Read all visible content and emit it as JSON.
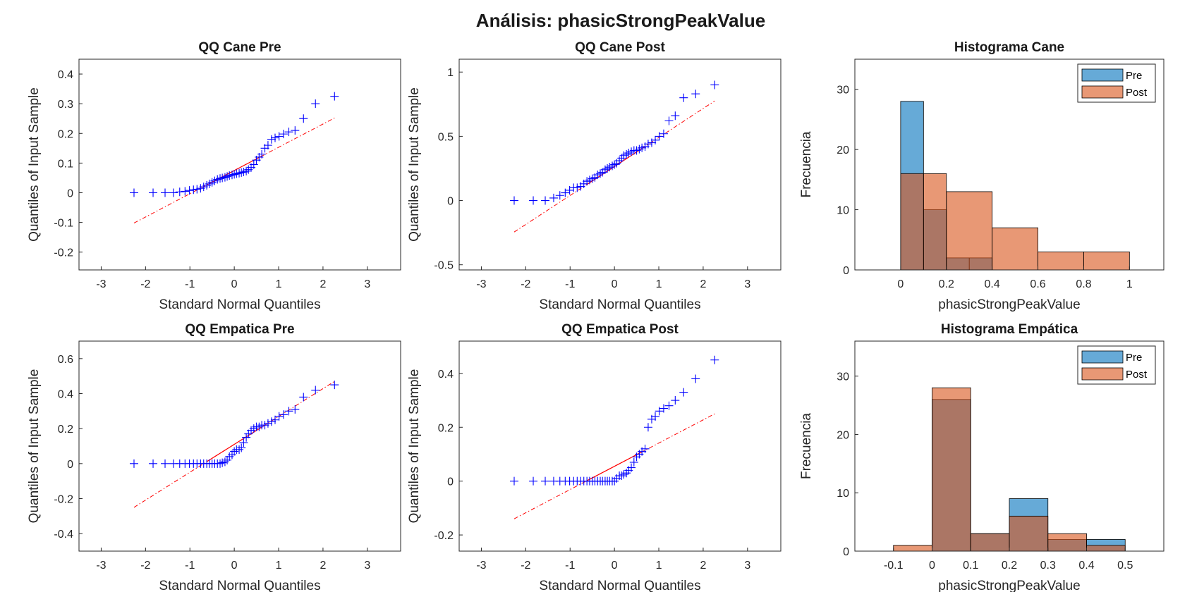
{
  "figure": {
    "title": "Análisis: phasicStrongPeakValue"
  },
  "chart_data": [
    {
      "type": "scatter",
      "title": "QQ Cane Pre",
      "xlabel": "Standard Normal Quantiles",
      "ylabel": "Quantiles of Input Sample",
      "xlim": [
        -3.5,
        3.75
      ],
      "ylim": [
        -0.26,
        0.45
      ],
      "xticks": [
        -3,
        -2,
        -1,
        0,
        1,
        2,
        3
      ],
      "yticks": [
        -0.2,
        -0.1,
        0,
        0.1,
        0.2,
        0.3,
        0.4
      ],
      "ytick_labels": [
        "-0.2",
        "-0.1",
        "0",
        "0.1",
        "0.2",
        "0.3",
        "0.4"
      ],
      "points_x": [
        -2.26,
        -1.83,
        -1.56,
        -1.37,
        -1.23,
        -1.11,
        -1.01,
        -0.92,
        -0.84,
        -0.76,
        -0.69,
        -0.62,
        -0.56,
        -0.5,
        -0.44,
        -0.38,
        -0.32,
        -0.27,
        -0.21,
        -0.16,
        -0.11,
        -0.05,
        0.0,
        0.05,
        0.11,
        0.16,
        0.21,
        0.27,
        0.32,
        0.38,
        0.44,
        0.5,
        0.56,
        0.62,
        0.69,
        0.76,
        0.84,
        0.92,
        1.01,
        1.11,
        1.23,
        1.37,
        1.56,
        1.83,
        2.26
      ],
      "points_y": [
        0.0,
        0.0,
        0.0,
        0.0,
        0.003,
        0.005,
        0.008,
        0.01,
        0.012,
        0.015,
        0.02,
        0.025,
        0.03,
        0.035,
        0.04,
        0.045,
        0.048,
        0.05,
        0.052,
        0.055,
        0.058,
        0.06,
        0.062,
        0.064,
        0.066,
        0.068,
        0.07,
        0.073,
        0.078,
        0.085,
        0.095,
        0.11,
        0.12,
        0.13,
        0.15,
        0.16,
        0.18,
        0.185,
        0.19,
        0.198,
        0.205,
        0.21,
        0.25,
        0.3,
        0.325
      ],
      "reference_line": {
        "x": [
          -2.26,
          2.26
        ],
        "y": [
          -0.102,
          0.252
        ]
      },
      "marker_color": "#0000ff",
      "line_color": "#ff0000"
    },
    {
      "type": "scatter",
      "title": "QQ Cane Post",
      "xlabel": "Standard Normal Quantiles",
      "ylabel": "Quantiles of Input Sample",
      "xlim": [
        -3.5,
        3.75
      ],
      "ylim": [
        -0.54,
        1.1
      ],
      "xticks": [
        -3,
        -2,
        -1,
        0,
        1,
        2,
        3
      ],
      "yticks": [
        -0.5,
        0,
        0.5,
        1
      ],
      "ytick_labels": [
        "-0.5",
        "0",
        "0.5",
        "1"
      ],
      "points_x": [
        -2.26,
        -1.83,
        -1.56,
        -1.37,
        -1.23,
        -1.11,
        -1.01,
        -0.92,
        -0.84,
        -0.76,
        -0.69,
        -0.62,
        -0.56,
        -0.5,
        -0.44,
        -0.38,
        -0.32,
        -0.27,
        -0.21,
        -0.16,
        -0.11,
        -0.05,
        0.0,
        0.05,
        0.11,
        0.16,
        0.21,
        0.27,
        0.32,
        0.38,
        0.44,
        0.5,
        0.56,
        0.62,
        0.69,
        0.76,
        0.84,
        0.92,
        1.01,
        1.11,
        1.23,
        1.37,
        1.56,
        1.83,
        2.26
      ],
      "points_y": [
        0.0,
        0.0,
        0.0,
        0.02,
        0.04,
        0.06,
        0.08,
        0.1,
        0.1,
        0.11,
        0.13,
        0.15,
        0.16,
        0.17,
        0.18,
        0.2,
        0.21,
        0.22,
        0.24,
        0.25,
        0.26,
        0.27,
        0.28,
        0.29,
        0.31,
        0.33,
        0.35,
        0.36,
        0.37,
        0.38,
        0.39,
        0.39,
        0.4,
        0.41,
        0.42,
        0.44,
        0.45,
        0.47,
        0.5,
        0.52,
        0.62,
        0.66,
        0.8,
        0.83,
        0.9
      ],
      "reference_line": {
        "x": [
          -2.26,
          2.26
        ],
        "y": [
          -0.245,
          0.775
        ]
      },
      "marker_color": "#0000ff",
      "line_color": "#ff0000"
    },
    {
      "type": "bar",
      "title": "Histograma Cane",
      "xlabel": "phasicStrongPeakValue",
      "ylabel": "Frecuencia",
      "xlim": [
        -0.2,
        1.15
      ],
      "ylim": [
        0,
        35
      ],
      "xticks": [
        0,
        0.2,
        0.4,
        0.6,
        0.8,
        1
      ],
      "xtick_labels": [
        "0",
        "0.2",
        "0.4",
        "0.6",
        "0.8",
        "1"
      ],
      "yticks": [
        0,
        10,
        20,
        30
      ],
      "legend": "top-right",
      "series": [
        {
          "name": "Pre",
          "color": "#0072bd",
          "bins": [
            [
              0,
              0.1,
              28
            ],
            [
              0.1,
              0.2,
              10
            ],
            [
              0.2,
              0.3,
              2
            ],
            [
              0.3,
              0.4,
              2
            ]
          ]
        },
        {
          "name": "Post",
          "color": "#d95319",
          "bins": [
            [
              0,
              0.1,
              16
            ],
            [
              0.1,
              0.2,
              16
            ],
            [
              0.2,
              0.4,
              13
            ],
            [
              0.4,
              0.6,
              7
            ],
            [
              0.6,
              0.8,
              3
            ],
            [
              0.8,
              1.0,
              3
            ]
          ]
        }
      ]
    },
    {
      "type": "scatter",
      "title": "QQ Empatica Pre",
      "xlabel": "Standard Normal Quantiles",
      "ylabel": "Quantiles of Input Sample",
      "xlim": [
        -3.5,
        3.75
      ],
      "ylim": [
        -0.5,
        0.7
      ],
      "xticks": [
        -3,
        -2,
        -1,
        0,
        1,
        2,
        3
      ],
      "yticks": [
        -0.4,
        -0.2,
        0,
        0.2,
        0.4,
        0.6
      ],
      "ytick_labels": [
        "-0.4",
        "-0.2",
        "0",
        "0.2",
        "0.4",
        "0.6"
      ],
      "points_x": [
        -2.26,
        -1.83,
        -1.56,
        -1.37,
        -1.23,
        -1.11,
        -1.01,
        -0.92,
        -0.84,
        -0.76,
        -0.69,
        -0.62,
        -0.56,
        -0.5,
        -0.44,
        -0.38,
        -0.32,
        -0.27,
        -0.21,
        -0.16,
        -0.11,
        -0.05,
        0.0,
        0.05,
        0.11,
        0.16,
        0.21,
        0.27,
        0.32,
        0.38,
        0.44,
        0.5,
        0.56,
        0.62,
        0.69,
        0.76,
        0.84,
        0.92,
        1.01,
        1.11,
        1.23,
        1.37,
        1.56,
        1.83,
        2.26
      ],
      "points_y": [
        0.0,
        0.0,
        0.0,
        0.0,
        0.0,
        0.0,
        0.0,
        0.0,
        0.0,
        0.0,
        0.0,
        0.0,
        0.0,
        0.0,
        0.0,
        0.0,
        0.0,
        0.005,
        0.01,
        0.02,
        0.04,
        0.05,
        0.07,
        0.08,
        0.08,
        0.09,
        0.12,
        0.15,
        0.17,
        0.19,
        0.2,
        0.21,
        0.21,
        0.22,
        0.22,
        0.23,
        0.24,
        0.25,
        0.27,
        0.28,
        0.3,
        0.31,
        0.38,
        0.42,
        0.45
      ],
      "reference_line": {
        "x": [
          -2.26,
          2.26
        ],
        "y": [
          -0.25,
          0.47
        ]
      },
      "marker_color": "#0000ff",
      "line_color": "#ff0000"
    },
    {
      "type": "scatter",
      "title": "QQ Empatica Post",
      "xlabel": "Standard Normal Quantiles",
      "ylabel": "Quantiles of Input Sample",
      "xlim": [
        -3.5,
        3.75
      ],
      "ylim": [
        -0.26,
        0.52
      ],
      "xticks": [
        -3,
        -2,
        -1,
        0,
        1,
        2,
        3
      ],
      "yticks": [
        -0.2,
        0,
        0.2,
        0.4
      ],
      "ytick_labels": [
        "-0.2",
        "0",
        "0.2",
        "0.4"
      ],
      "points_x": [
        -2.26,
        -1.83,
        -1.56,
        -1.37,
        -1.23,
        -1.11,
        -1.01,
        -0.92,
        -0.84,
        -0.76,
        -0.69,
        -0.62,
        -0.56,
        -0.5,
        -0.44,
        -0.38,
        -0.32,
        -0.27,
        -0.21,
        -0.16,
        -0.11,
        -0.05,
        0.0,
        0.05,
        0.11,
        0.16,
        0.21,
        0.27,
        0.32,
        0.38,
        0.44,
        0.5,
        0.56,
        0.62,
        0.69,
        0.76,
        0.84,
        0.92,
        1.01,
        1.11,
        1.23,
        1.37,
        1.56,
        1.83,
        2.26
      ],
      "points_y": [
        0.0,
        0.0,
        0.0,
        0.0,
        0.0,
        0.0,
        0.0,
        0.0,
        0.0,
        0.0,
        0.0,
        0.0,
        0.0,
        0.0,
        0.0,
        0.0,
        0.0,
        0.0,
        0.0,
        0.0,
        0.0,
        0.0,
        0.0,
        0.01,
        0.02,
        0.02,
        0.025,
        0.03,
        0.04,
        0.05,
        0.07,
        0.09,
        0.1,
        0.11,
        0.12,
        0.2,
        0.23,
        0.24,
        0.26,
        0.27,
        0.28,
        0.3,
        0.33,
        0.38,
        0.45
      ],
      "reference_line": {
        "x": [
          -2.26,
          2.26
        ],
        "y": [
          -0.14,
          0.25
        ]
      },
      "marker_color": "#0000ff",
      "line_color": "#ff0000"
    },
    {
      "type": "bar",
      "title": "Histograma Empática",
      "xlabel": "phasicStrongPeakValue",
      "ylabel": "Frecuencia",
      "xlim": [
        -0.2,
        0.6
      ],
      "ylim": [
        0,
        36
      ],
      "xticks": [
        -0.1,
        0,
        0.1,
        0.2,
        0.3,
        0.4,
        0.5
      ],
      "xtick_labels": [
        "-0.1",
        "0",
        "0.1",
        "0.2",
        "0.3",
        "0.4",
        "0.5"
      ],
      "yticks": [
        0,
        10,
        20,
        30
      ],
      "legend": "top-right",
      "series": [
        {
          "name": "Pre",
          "color": "#0072bd",
          "bins": [
            [
              0,
              0.1,
              26
            ],
            [
              0.1,
              0.2,
              3
            ],
            [
              0.2,
              0.3,
              9
            ],
            [
              0.3,
              0.4,
              2
            ],
            [
              0.4,
              0.5,
              2
            ]
          ]
        },
        {
          "name": "Post",
          "color": "#d95319",
          "bins": [
            [
              -0.1,
              0,
              1
            ],
            [
              0,
              0.1,
              28
            ],
            [
              0.1,
              0.2,
              3
            ],
            [
              0.2,
              0.3,
              6
            ],
            [
              0.3,
              0.4,
              3
            ],
            [
              0.4,
              0.5,
              1
            ]
          ]
        }
      ]
    }
  ]
}
